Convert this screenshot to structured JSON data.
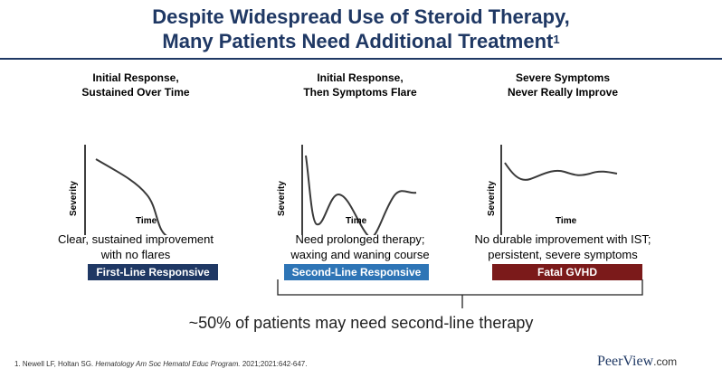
{
  "title": {
    "line1": "Despite Widespread Use of Steroid Therapy,",
    "line2": "Many Patients Need Additional Treatment",
    "superscript": "1"
  },
  "colors": {
    "title": "#1f3864",
    "first_line": "#1f3864",
    "second_line": "#2e75b6",
    "fatal": "#7b1a1a"
  },
  "panels": [
    {
      "heading_line1": "Initial Response,",
      "heading_line2": "Sustained Over Time",
      "ylabel": "Severity",
      "xlabel": "Time",
      "desc_line1": "Clear, sustained improvement",
      "desc_line2": "with no flares",
      "badge": "First-Line Responsive"
    },
    {
      "heading_line1": "Initial Response,",
      "heading_line2": "Then Symptoms Flare",
      "ylabel": "Severity",
      "xlabel": "Time",
      "desc_line1": "Need prolonged therapy;",
      "desc_line2": "waxing and waning course",
      "badge": "Second-Line Responsive"
    },
    {
      "heading_line1": "Severe Symptoms",
      "heading_line2": "Never Really Improve",
      "ylabel": "Severity",
      "xlabel": "Time",
      "desc_line1": "No durable improvement with IST;",
      "desc_line2": "persistent, severe symptoms",
      "badge": "Fatal GVHD"
    }
  ],
  "note": "~50% of patients may need second-line therapy",
  "reference": {
    "authors": "1. Newell LF, Holtan SG.",
    "journal": "Hematology Am Soc Hematol Educ Program.",
    "details": "2021;2021:642-647."
  },
  "logo": {
    "name": "PeerView",
    "domain": ".com"
  }
}
